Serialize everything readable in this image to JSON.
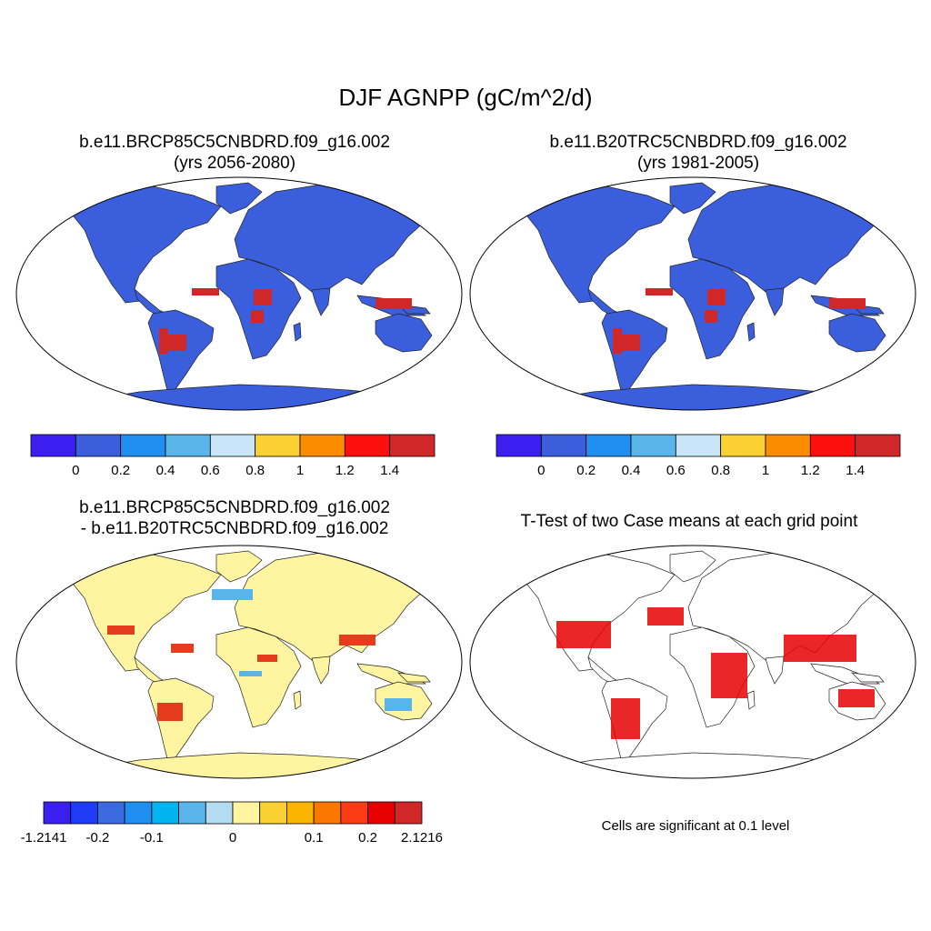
{
  "figure_title": "DJF AGNPP (gC/m^2/d)",
  "panels": {
    "top_left": {
      "title_line1": "b.e11.BRCP85C5CNBDRD.f09_g16.002",
      "title_line2": "(yrs 2056-2080)"
    },
    "top_right": {
      "title_line1": "b.e11.B20TRC5CNBDRD.f09_g16.002",
      "title_line2": "(yrs 1981-2005)"
    },
    "bottom_left": {
      "title_line1": "b.e11.BRCP85C5CNBDRD.f09_g16.002",
      "title_line2": "- b.e11.B20TRC5CNBDRD.f09_g16.002"
    },
    "bottom_right": {
      "title_line1": "T-Test of two Case means at each grid point",
      "note": "Cells are significant at 0.1 level"
    }
  },
  "colorbars": {
    "case": {
      "colors": [
        "#3a1ff0",
        "#3b5fdc",
        "#1e8ef0",
        "#5ab4ec",
        "#c8e6f8",
        "#fbd033",
        "#fb8c00",
        "#fb0f0f",
        "#d02828"
      ],
      "labels": [
        "0",
        "0.2",
        "0.4",
        "0.6",
        "0.8",
        "1",
        "1.2",
        "1.4"
      ]
    },
    "diff": {
      "colors": [
        "#3a1ff0",
        "#1e3cf5",
        "#3b6ae0",
        "#1e8ef0",
        "#00b4f0",
        "#5ab4ec",
        "#b4dcf0",
        "#fff5a0",
        "#fbd033",
        "#fbb400",
        "#fb7800",
        "#fb3c14",
        "#e60000",
        "#d02828"
      ],
      "labels": [
        "-1.2141",
        "-0.2",
        "-0.1",
        "0",
        "0.1",
        "0.2",
        "2.1216"
      ]
    }
  },
  "colors": {
    "ocean": "#ffffff",
    "land_case_base": "#3b5fdc",
    "land_diff_base": "#fff5a0",
    "tropical_high": "#d02828",
    "significant": "#e60000"
  }
}
